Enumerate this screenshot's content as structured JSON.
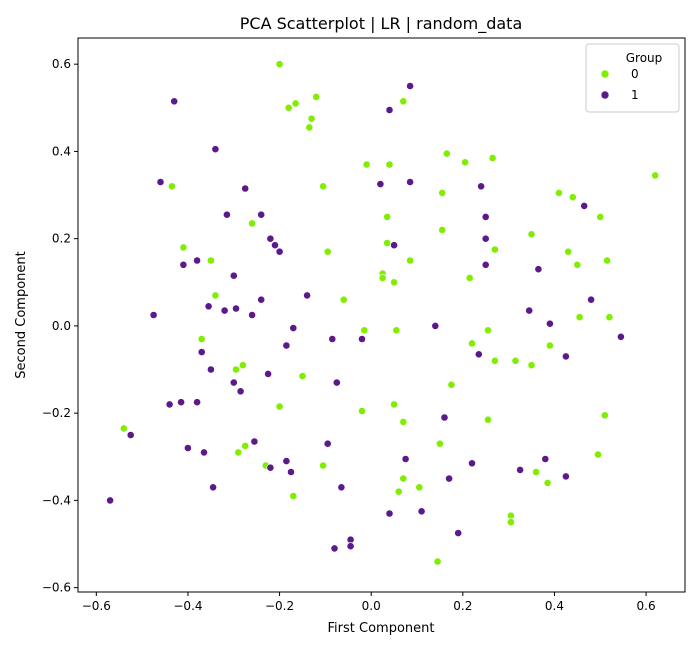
{
  "chart_data": {
    "type": "scatter",
    "title": "PCA Scatterplot | LR | random_data",
    "xlabel": "First Component",
    "ylabel": "Second Component",
    "xlim": [
      -0.64,
      0.685
    ],
    "ylim": [
      -0.61,
      0.66
    ],
    "xticks": [
      -0.6,
      -0.4,
      -0.2,
      0.0,
      0.2,
      0.4,
      0.6
    ],
    "xtick_labels": [
      "−0.6",
      "−0.4",
      "−0.2",
      "0.0",
      "0.2",
      "0.4",
      "0.6"
    ],
    "yticks": [
      -0.6,
      -0.4,
      -0.2,
      0.0,
      0.2,
      0.4,
      0.6
    ],
    "ytick_labels": [
      "−0.6",
      "−0.4",
      "−0.2",
      "0.0",
      "0.2",
      "0.4",
      "0.6"
    ],
    "grid": false,
    "legend": {
      "title": "Group",
      "placement": "top-right"
    },
    "series": [
      {
        "name": "0",
        "color": "#7fee00",
        "points": [
          [
            -0.2,
            0.6
          ],
          [
            -0.18,
            0.5
          ],
          [
            -0.165,
            0.51
          ],
          [
            -0.12,
            0.525
          ],
          [
            -0.13,
            0.475
          ],
          [
            -0.135,
            0.455
          ],
          [
            0.07,
            0.515
          ],
          [
            -0.435,
            0.32
          ],
          [
            -0.105,
            0.32
          ],
          [
            -0.01,
            0.37
          ],
          [
            0.04,
            0.37
          ],
          [
            0.165,
            0.395
          ],
          [
            0.205,
            0.375
          ],
          [
            0.265,
            0.385
          ],
          [
            0.155,
            0.305
          ],
          [
            0.62,
            0.345
          ],
          [
            0.41,
            0.305
          ],
          [
            0.44,
            0.295
          ],
          [
            0.5,
            0.25
          ],
          [
            0.035,
            0.25
          ],
          [
            0.155,
            0.22
          ],
          [
            -0.26,
            0.235
          ],
          [
            -0.41,
            0.18
          ],
          [
            -0.095,
            0.17
          ],
          [
            0.035,
            0.19
          ],
          [
            0.085,
            0.15
          ],
          [
            0.025,
            0.12
          ],
          [
            0.025,
            0.11
          ],
          [
            0.05,
            0.1
          ],
          [
            0.27,
            0.175
          ],
          [
            0.35,
            0.21
          ],
          [
            0.43,
            0.17
          ],
          [
            0.45,
            0.14
          ],
          [
            0.515,
            0.15
          ],
          [
            0.215,
            0.11
          ],
          [
            -0.35,
            0.15
          ],
          [
            -0.34,
            0.07
          ],
          [
            -0.06,
            0.06
          ],
          [
            -0.015,
            -0.01
          ],
          [
            0.055,
            -0.01
          ],
          [
            0.255,
            -0.01
          ],
          [
            0.455,
            0.02
          ],
          [
            0.52,
            0.02
          ],
          [
            -0.37,
            -0.03
          ],
          [
            -0.28,
            -0.09
          ],
          [
            -0.295,
            -0.1
          ],
          [
            -0.15,
            -0.115
          ],
          [
            0.22,
            -0.04
          ],
          [
            0.27,
            -0.08
          ],
          [
            0.315,
            -0.08
          ],
          [
            0.35,
            -0.09
          ],
          [
            0.39,
            -0.045
          ],
          [
            0.175,
            -0.135
          ],
          [
            -0.2,
            -0.185
          ],
          [
            -0.02,
            -0.195
          ],
          [
            0.05,
            -0.18
          ],
          [
            0.07,
            -0.22
          ],
          [
            0.255,
            -0.215
          ],
          [
            0.51,
            -0.205
          ],
          [
            -0.54,
            -0.235
          ],
          [
            -0.275,
            -0.275
          ],
          [
            -0.29,
            -0.29
          ],
          [
            -0.23,
            -0.32
          ],
          [
            -0.105,
            -0.32
          ],
          [
            0.15,
            -0.27
          ],
          [
            0.07,
            -0.35
          ],
          [
            0.06,
            -0.38
          ],
          [
            0.105,
            -0.37
          ],
          [
            0.36,
            -0.335
          ],
          [
            0.385,
            -0.36
          ],
          [
            0.495,
            -0.295
          ],
          [
            -0.17,
            -0.39
          ],
          [
            0.305,
            -0.435
          ],
          [
            0.305,
            -0.45
          ],
          [
            0.145,
            -0.54
          ]
        ]
      },
      {
        "name": "1",
        "color": "#5a1a8c",
        "points": [
          [
            -0.43,
            0.515
          ],
          [
            0.085,
            0.55
          ],
          [
            0.04,
            0.495
          ],
          [
            -0.34,
            0.405
          ],
          [
            -0.46,
            0.33
          ],
          [
            -0.275,
            0.315
          ],
          [
            0.02,
            0.325
          ],
          [
            0.085,
            0.33
          ],
          [
            0.24,
            0.32
          ],
          [
            0.465,
            0.275
          ],
          [
            -0.315,
            0.255
          ],
          [
            -0.24,
            0.255
          ],
          [
            0.25,
            0.25
          ],
          [
            -0.22,
            0.2
          ],
          [
            -0.21,
            0.185
          ],
          [
            -0.2,
            0.17
          ],
          [
            0.05,
            0.185
          ],
          [
            0.25,
            0.2
          ],
          [
            -0.38,
            0.15
          ],
          [
            -0.41,
            0.14
          ],
          [
            0.25,
            0.14
          ],
          [
            0.365,
            0.13
          ],
          [
            -0.3,
            0.115
          ],
          [
            -0.14,
            0.07
          ],
          [
            -0.24,
            0.06
          ],
          [
            0.48,
            0.06
          ],
          [
            -0.475,
            0.025
          ],
          [
            -0.355,
            0.045
          ],
          [
            -0.32,
            0.035
          ],
          [
            -0.295,
            0.04
          ],
          [
            -0.26,
            0.025
          ],
          [
            -0.17,
            -0.005
          ],
          [
            0.14,
            0
          ],
          [
            0.345,
            0.035
          ],
          [
            0.39,
            0.005
          ],
          [
            0.545,
            -0.025
          ],
          [
            -0.085,
            -0.03
          ],
          [
            -0.02,
            -0.03
          ],
          [
            -0.185,
            -0.045
          ],
          [
            -0.37,
            -0.06
          ],
          [
            -0.35,
            -0.1
          ],
          [
            -0.225,
            -0.11
          ],
          [
            0.235,
            -0.065
          ],
          [
            0.425,
            -0.07
          ],
          [
            -0.3,
            -0.13
          ],
          [
            -0.075,
            -0.13
          ],
          [
            -0.285,
            -0.15
          ],
          [
            -0.44,
            -0.18
          ],
          [
            -0.415,
            -0.175
          ],
          [
            -0.38,
            -0.175
          ],
          [
            0.16,
            -0.21
          ],
          [
            -0.255,
            -0.265
          ],
          [
            -0.095,
            -0.27
          ],
          [
            -0.4,
            -0.28
          ],
          [
            -0.365,
            -0.29
          ],
          [
            -0.22,
            -0.325
          ],
          [
            -0.185,
            -0.31
          ],
          [
            -0.175,
            -0.335
          ],
          [
            0.075,
            -0.305
          ],
          [
            0.22,
            -0.315
          ],
          [
            0.325,
            -0.33
          ],
          [
            0.38,
            -0.305
          ],
          [
            0.17,
            -0.35
          ],
          [
            0.425,
            -0.345
          ],
          [
            -0.525,
            -0.25
          ],
          [
            -0.57,
            -0.4
          ],
          [
            -0.345,
            -0.37
          ],
          [
            -0.065,
            -0.37
          ],
          [
            0.04,
            -0.43
          ],
          [
            0.11,
            -0.425
          ],
          [
            0.19,
            -0.475
          ],
          [
            -0.045,
            -0.49
          ],
          [
            -0.045,
            -0.505
          ],
          [
            -0.08,
            -0.51
          ]
        ]
      }
    ]
  }
}
